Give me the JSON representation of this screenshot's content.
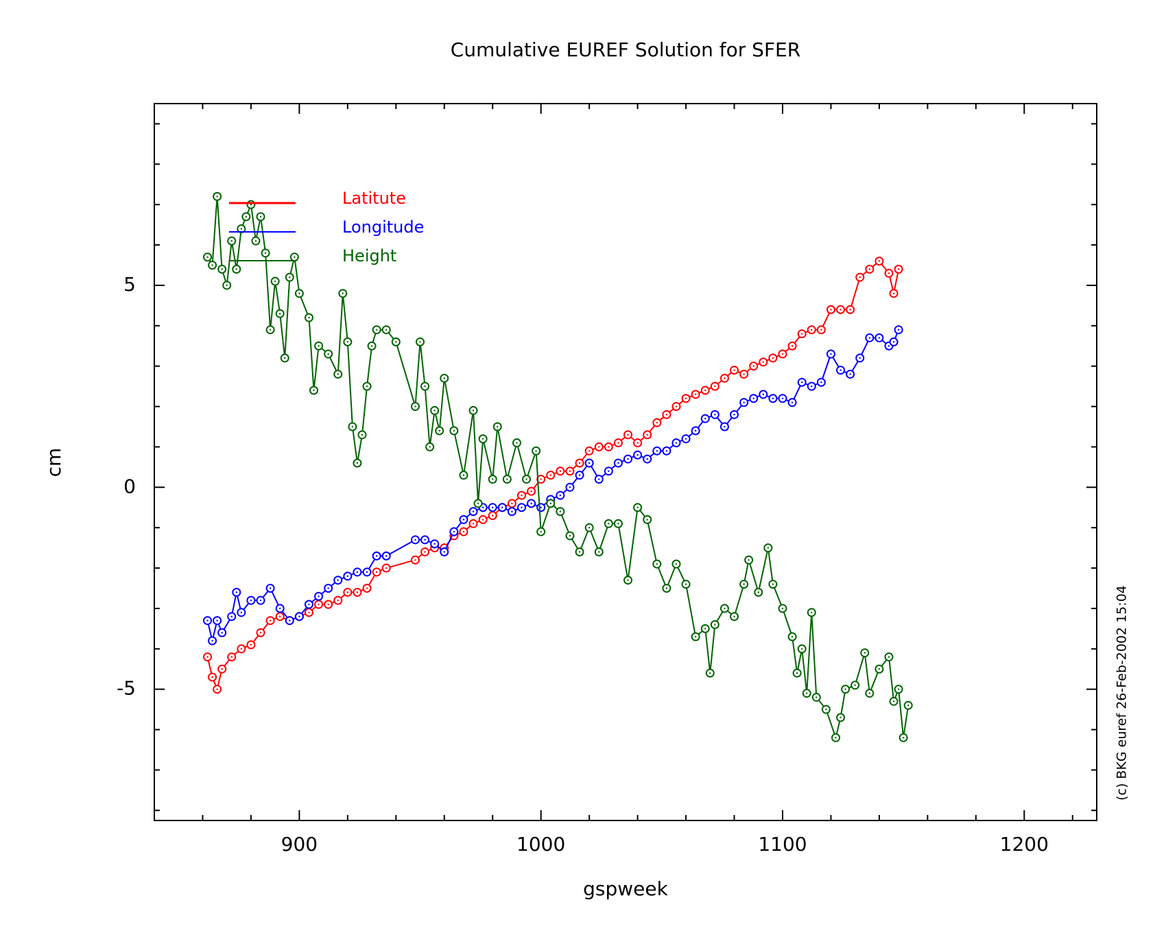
{
  "chart_data": {
    "type": "line",
    "title": "Cumulative EUREF Solution for SFER",
    "x_label": "gspweek",
    "y_label": "cm",
    "footnote": "(c) BKG euref 26-Feb-2002 15:04",
    "legend": "upper left",
    "xlim": [
      840,
      1230
    ],
    "ylim": [
      -8.25,
      9.5
    ],
    "xticks": [
      900,
      1000,
      1100,
      1200
    ],
    "yticks": [
      -5,
      0,
      5
    ],
    "xminorticks": [
      860,
      880,
      920,
      940,
      960,
      980,
      1020,
      1040,
      1060,
      1080,
      1120,
      1140,
      1160,
      1180,
      1220
    ],
    "yminorticks": [
      -8,
      -7,
      -6,
      -4,
      -3,
      -2,
      -1,
      1,
      2,
      3,
      4,
      6,
      7,
      8,
      9
    ],
    "series": [
      {
        "name": "Latitute",
        "color": "#ff0000",
        "x": [
          862,
          864,
          866,
          868,
          872,
          876,
          880,
          884,
          888,
          892,
          896,
          900,
          904,
          908,
          912,
          916,
          920,
          924,
          928,
          932,
          936,
          948,
          952,
          956,
          960,
          964,
          968,
          972,
          976,
          980,
          984,
          988,
          992,
          996,
          1000,
          1004,
          1008,
          1012,
          1016,
          1020,
          1024,
          1028,
          1032,
          1036,
          1040,
          1044,
          1048,
          1052,
          1056,
          1060,
          1064,
          1068,
          1072,
          1076,
          1080,
          1084,
          1088,
          1092,
          1096,
          1100,
          1104,
          1108,
          1112,
          1116,
          1120,
          1124,
          1128,
          1132,
          1136,
          1140,
          1144,
          1146,
          1148
        ],
        "values": [
          -4.2,
          -4.7,
          -5.0,
          -4.5,
          -4.2,
          -4.0,
          -3.9,
          -3.6,
          -3.3,
          -3.2,
          -3.3,
          -3.2,
          -3.1,
          -2.9,
          -2.9,
          -2.8,
          -2.6,
          -2.6,
          -2.5,
          -2.1,
          -2.0,
          -1.8,
          -1.6,
          -1.5,
          -1.5,
          -1.2,
          -1.1,
          -0.9,
          -0.8,
          -0.7,
          -0.5,
          -0.4,
          -0.2,
          -0.1,
          0.2,
          0.3,
          0.4,
          0.4,
          0.6,
          0.9,
          1.0,
          1.0,
          1.1,
          1.3,
          1.1,
          1.3,
          1.6,
          1.8,
          2.0,
          2.2,
          2.3,
          2.4,
          2.5,
          2.7,
          2.9,
          2.8,
          3.0,
          3.1,
          3.2,
          3.3,
          3.5,
          3.8,
          3.9,
          3.9,
          4.4,
          4.4,
          4.4,
          5.2,
          5.4,
          5.6,
          5.3,
          4.8,
          5.4
        ]
      },
      {
        "name": "Longitude",
        "color": "#0000ff",
        "x": [
          862,
          864,
          866,
          868,
          872,
          874,
          876,
          880,
          884,
          888,
          892,
          896,
          900,
          904,
          908,
          912,
          916,
          920,
          924,
          928,
          932,
          936,
          948,
          952,
          956,
          960,
          964,
          968,
          972,
          976,
          980,
          984,
          988,
          992,
          996,
          1000,
          1004,
          1008,
          1012,
          1016,
          1020,
          1024,
          1028,
          1032,
          1036,
          1040,
          1044,
          1048,
          1052,
          1056,
          1060,
          1064,
          1068,
          1072,
          1076,
          1080,
          1084,
          1088,
          1092,
          1096,
          1100,
          1104,
          1108,
          1112,
          1116,
          1120,
          1124,
          1128,
          1132,
          1136,
          1140,
          1144,
          1146,
          1148
        ],
        "values": [
          -3.3,
          -3.8,
          -3.3,
          -3.6,
          -3.2,
          -2.6,
          -3.1,
          -2.8,
          -2.8,
          -2.5,
          -3.0,
          -3.3,
          -3.2,
          -2.9,
          -2.7,
          -2.5,
          -2.3,
          -2.2,
          -2.1,
          -2.1,
          -1.7,
          -1.7,
          -1.3,
          -1.3,
          -1.4,
          -1.6,
          -1.1,
          -0.8,
          -0.6,
          -0.5,
          -0.5,
          -0.5,
          -0.6,
          -0.5,
          -0.4,
          -0.5,
          -0.3,
          -0.2,
          0.0,
          0.3,
          0.6,
          0.2,
          0.4,
          0.6,
          0.7,
          0.8,
          0.7,
          0.9,
          0.9,
          1.1,
          1.2,
          1.4,
          1.7,
          1.8,
          1.5,
          1.8,
          2.1,
          2.2,
          2.3,
          2.2,
          2.2,
          2.1,
          2.6,
          2.5,
          2.6,
          3.3,
          2.9,
          2.8,
          3.2,
          3.7,
          3.7,
          3.5,
          3.6,
          3.9
        ]
      },
      {
        "name": "Height",
        "color": "#006400",
        "x": [
          862,
          864,
          866,
          868,
          870,
          872,
          874,
          876,
          878,
          880,
          882,
          884,
          886,
          888,
          890,
          892,
          894,
          896,
          898,
          900,
          904,
          906,
          908,
          912,
          916,
          918,
          920,
          922,
          924,
          926,
          928,
          930,
          932,
          936,
          940,
          948,
          950,
          952,
          954,
          956,
          958,
          960,
          964,
          968,
          972,
          974,
          976,
          980,
          982,
          986,
          990,
          994,
          998,
          1000,
          1004,
          1008,
          1012,
          1016,
          1020,
          1024,
          1028,
          1032,
          1036,
          1040,
          1044,
          1048,
          1052,
          1056,
          1060,
          1064,
          1068,
          1070,
          1072,
          1076,
          1080,
          1084,
          1086,
          1090,
          1094,
          1096,
          1100,
          1104,
          1106,
          1108,
          1110,
          1112,
          1114,
          1118,
          1122,
          1124,
          1126,
          1130,
          1134,
          1136,
          1140,
          1144,
          1146,
          1148,
          1150,
          1152
        ],
        "values": [
          5.7,
          5.5,
          7.2,
          5.4,
          5.0,
          6.1,
          5.4,
          6.4,
          6.7,
          7.0,
          6.1,
          6.7,
          5.8,
          3.9,
          5.1,
          4.3,
          3.2,
          5.2,
          5.7,
          4.8,
          4.2,
          2.4,
          3.5,
          3.3,
          2.8,
          4.8,
          3.6,
          1.5,
          0.6,
          1.3,
          2.5,
          3.5,
          3.9,
          3.9,
          3.6,
          2.0,
          3.6,
          2.5,
          1.0,
          1.9,
          1.4,
          2.7,
          1.4,
          0.3,
          1.9,
          -0.4,
          1.2,
          0.2,
          1.5,
          0.2,
          1.1,
          0.2,
          0.9,
          -1.1,
          -0.4,
          -0.6,
          -1.2,
          -1.6,
          -1.0,
          -1.6,
          -0.9,
          -0.9,
          -2.3,
          -0.5,
          -0.8,
          -1.9,
          -2.5,
          -1.9,
          -2.4,
          -3.7,
          -3.5,
          -4.6,
          -3.4,
          -3.0,
          -3.2,
          -2.4,
          -1.8,
          -2.6,
          -1.5,
          -2.4,
          -3.0,
          -3.7,
          -4.6,
          -4.0,
          -5.1,
          -3.1,
          -5.2,
          -5.5,
          -6.2,
          -5.7,
          -5.0,
          -4.9,
          -4.1,
          -5.1,
          -4.5,
          -4.2,
          -5.3,
          -5.0,
          -6.2,
          -5.4
        ]
      }
    ]
  }
}
